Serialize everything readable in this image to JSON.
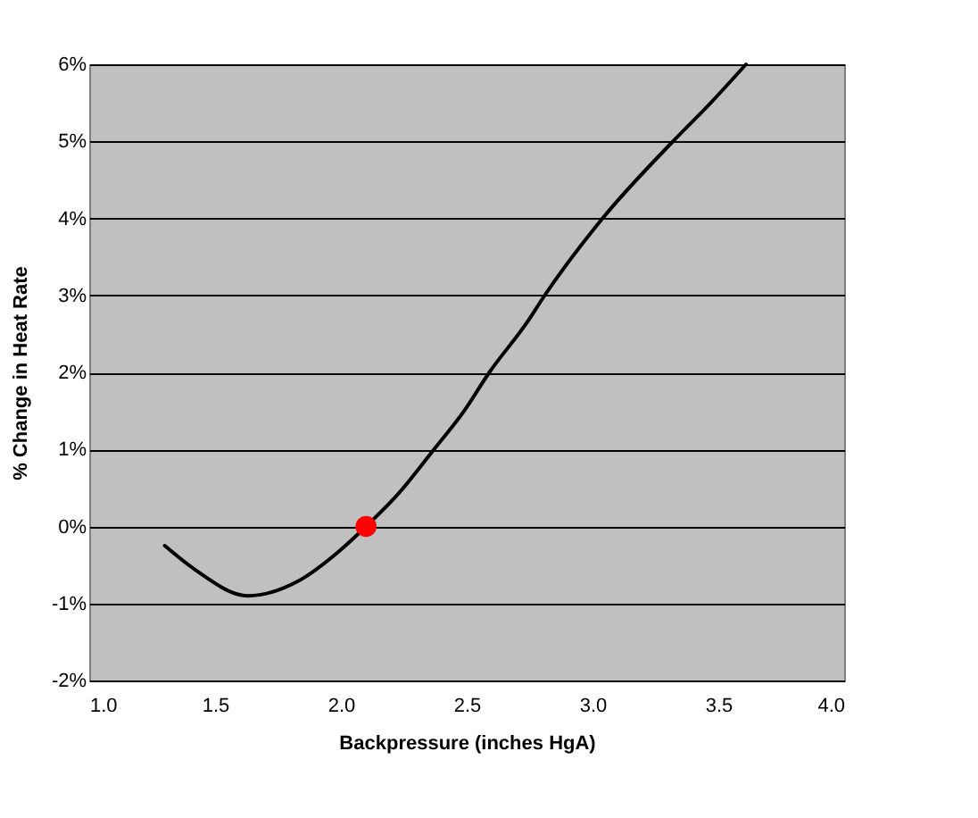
{
  "chart_data": {
    "type": "line",
    "xlabel": "Backpressure (inches HgA)",
    "ylabel": "% Change in Heat Rate",
    "xlim": [
      1.0,
      4.0
    ],
    "ylim": [
      -2,
      6
    ],
    "xticks": [
      {
        "value": 1.0,
        "label": "1.0"
      },
      {
        "value": 1.5,
        "label": "1.5"
      },
      {
        "value": 2.0,
        "label": "2.0"
      },
      {
        "value": 2.5,
        "label": "2.5"
      },
      {
        "value": 3.0,
        "label": "3.0"
      },
      {
        "value": 3.5,
        "label": "3.5"
      },
      {
        "value": 4.0,
        "label": "4.0"
      }
    ],
    "yticks": [
      {
        "value": -2,
        "label": "-2%"
      },
      {
        "value": -1,
        "label": "-1%"
      },
      {
        "value": 0,
        "label": "0%"
      },
      {
        "value": 1,
        "label": "1%"
      },
      {
        "value": 2,
        "label": "2%"
      },
      {
        "value": 3,
        "label": "3%"
      },
      {
        "value": 4,
        "label": "4%"
      },
      {
        "value": 5,
        "label": "5%"
      },
      {
        "value": 6,
        "label": "6%"
      }
    ],
    "grid": "y",
    "series": [
      {
        "color": "#000000",
        "marker": "none",
        "line_style": "solid",
        "x": [
          1.3,
          1.42,
          1.63,
          1.83,
          1.99,
          2.1,
          2.23,
          2.37,
          2.49,
          2.59,
          2.74,
          2.81,
          3.04,
          3.32,
          3.47,
          3.61
        ],
        "values": [
          -0.25,
          -0.56,
          -0.9,
          -0.71,
          -0.33,
          0.0,
          0.43,
          1.0,
          1.5,
          2.0,
          2.65,
          3.0,
          4.0,
          5.0,
          5.5,
          6.0
        ]
      },
      {
        "type": "scatter",
        "color": "#ff0000",
        "marker": "circle",
        "x": [
          2.1
        ],
        "values": [
          0.0
        ]
      }
    ]
  }
}
